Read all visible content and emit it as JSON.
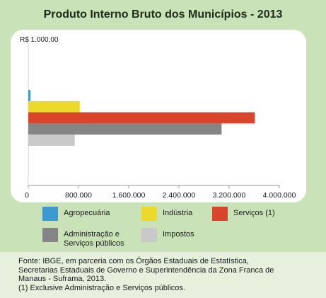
{
  "chart_data": {
    "type": "bar",
    "orientation": "horizontal",
    "title": "Produto Interno Bruto dos Municípios - 2013",
    "unit_label": "R$ 1.000,00",
    "categories": [
      "Agropecuária",
      "Indústria",
      "Serviços (1)",
      "Administração e Serviços públicos",
      "Impostos"
    ],
    "values": [
      15000,
      820000,
      3610000,
      3080000,
      740000
    ],
    "colors": [
      "#3d9ad1",
      "#ecd92c",
      "#d9452b",
      "#858585",
      "#c9c9c9"
    ],
    "xlim": [
      0,
      4000000
    ],
    "xticks": [
      0,
      800000,
      1600000,
      2400000,
      3200000,
      4000000
    ],
    "xtick_labels": [
      "0",
      "800.000",
      "1.600.000",
      "2.400.000",
      "3.200.000",
      "4.000.000"
    ],
    "grid": false,
    "legend_position": "bottom"
  },
  "legend": {
    "items": [
      {
        "label": "Agropecuária",
        "color": "#3d9ad1"
      },
      {
        "label": "Indústria",
        "color": "#ecd92c"
      },
      {
        "label": "Serviços (1)",
        "color": "#d9452b"
      },
      {
        "label": "Administração e Serviços públicos",
        "line1": "Administração e",
        "line2": "Serviços públicos",
        "color": "#858585"
      },
      {
        "label": "Impostos",
        "color": "#c9c9c9"
      }
    ]
  },
  "source": {
    "line1": "Fonte: IBGE, em parceria com os Órgãos Estaduais de Estatística,",
    "line2": "Secretarias Estaduais de Governo e Superintendência da Zona Franca de",
    "line3": "Manaus - Suframa, 2013.",
    "line4": "(1) Exclusive  Administração e Serviços públicos."
  }
}
